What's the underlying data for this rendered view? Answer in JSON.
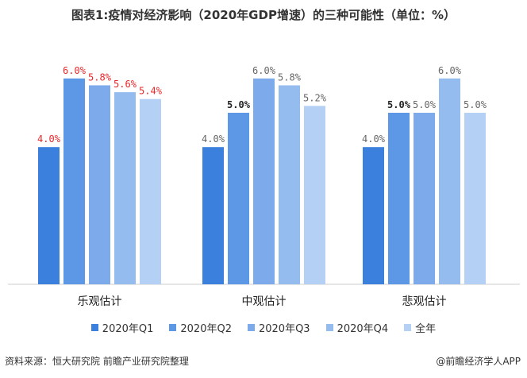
{
  "chart_data": {
    "type": "bar",
    "title": "图表1:疫情对经济影响（2020年GDP增速）的三种可能性（单位：%）",
    "categories": [
      "乐观估计",
      "中观估计",
      "悲观估计"
    ],
    "series": [
      {
        "name": "2020年Q1",
        "values": [
          4.0,
          4.0,
          4.0
        ],
        "color": "#3b80dd"
      },
      {
        "name": "2020年Q2",
        "values": [
          6.0,
          5.0,
          5.0
        ],
        "color": "#5c98e5"
      },
      {
        "name": "2020年Q3",
        "values": [
          5.8,
          6.0,
          5.0
        ],
        "color": "#7caaea"
      },
      {
        "name": "2020年Q4",
        "values": [
          5.6,
          5.8,
          6.0
        ],
        "color": "#95bcef"
      },
      {
        "name": "全年",
        "values": [
          5.4,
          5.2,
          5.0
        ],
        "color": "#b5d0f5"
      }
    ],
    "data_labels": [
      [
        "4.0%",
        "6.0%",
        "5.8%",
        "5.6%",
        "5.4%"
      ],
      [
        "4.0%",
        "5.0%",
        "6.0%",
        "5.8%",
        "5.2%"
      ],
      [
        "4.0%",
        "5.0%",
        "5.0%",
        "6.0%",
        "5.0%"
      ]
    ],
    "label_colors": [
      "#e8282b",
      "#666666",
      "#666666"
    ],
    "legend_position": "bottom",
    "grid": false,
    "xlabel": "",
    "ylabel": ""
  },
  "footer": {
    "source": "资料来源：恒大研究院 前瞻产业研究院整理",
    "credit": "@前瞻经济学人APP"
  }
}
